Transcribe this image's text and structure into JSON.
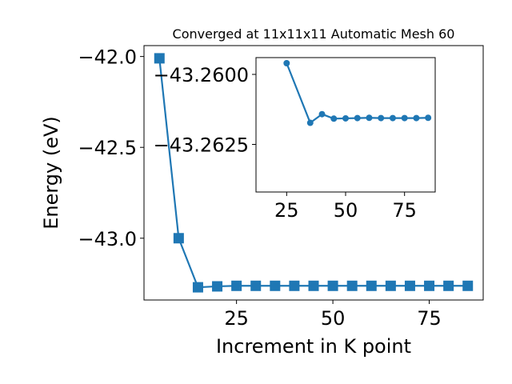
{
  "chart_data": [
    {
      "type": "line",
      "title": "Converged at 11x11x11 Automatic Mesh 60",
      "xlabel": "Increment in K point",
      "ylabel": "Energy (eV)",
      "xlim": [
        1.0,
        89.0
      ],
      "ylim": [
        -43.34,
        -41.94
      ],
      "xticks": [
        25,
        50,
        75
      ],
      "yticks": [
        -42.0,
        -42.5,
        -43.0
      ],
      "ytick_labels": [
        "−42.0",
        "−42.5",
        "−43.0"
      ],
      "xtick_labels": [
        "25",
        "50",
        "75"
      ],
      "grid": false,
      "legend": "none",
      "series": [
        {
          "color": "#1f77b4",
          "marker": "square",
          "x": [
            5,
            10,
            15,
            20,
            25,
            30,
            35,
            40,
            45,
            50,
            55,
            60,
            65,
            70,
            75,
            80,
            85
          ],
          "y": [
            -42.01,
            -43.0,
            -43.27,
            -43.265,
            -43.262,
            -43.262,
            -43.262,
            -43.262,
            -43.262,
            -43.262,
            -43.262,
            -43.262,
            -43.262,
            -43.262,
            -43.262,
            -43.262,
            -43.262
          ]
        }
      ]
    },
    {
      "type": "line",
      "title": "",
      "xlabel": "",
      "ylabel": "",
      "xlim": [
        12.0,
        88.0
      ],
      "ylim": [
        -43.2642,
        -43.2594
      ],
      "xticks": [
        25,
        50,
        75
      ],
      "yticks": [
        -43.2625,
        -43.26
      ],
      "ytick_labels": [
        "−43.2625",
        "−43.2600"
      ],
      "xtick_labels": [
        "25",
        "50",
        "75"
      ],
      "grid": false,
      "legend": "none",
      "series": [
        {
          "color": "#1f77b4",
          "marker": "circle",
          "x": [
            25,
            35,
            40,
            45,
            50,
            55,
            60,
            65,
            70,
            75,
            80,
            85
          ],
          "y": [
            -43.2596,
            -43.26173,
            -43.26142,
            -43.26158,
            -43.26157,
            -43.26156,
            -43.26155,
            -43.26156,
            -43.26156,
            -43.26156,
            -43.26156,
            -43.26155
          ]
        }
      ]
    }
  ]
}
